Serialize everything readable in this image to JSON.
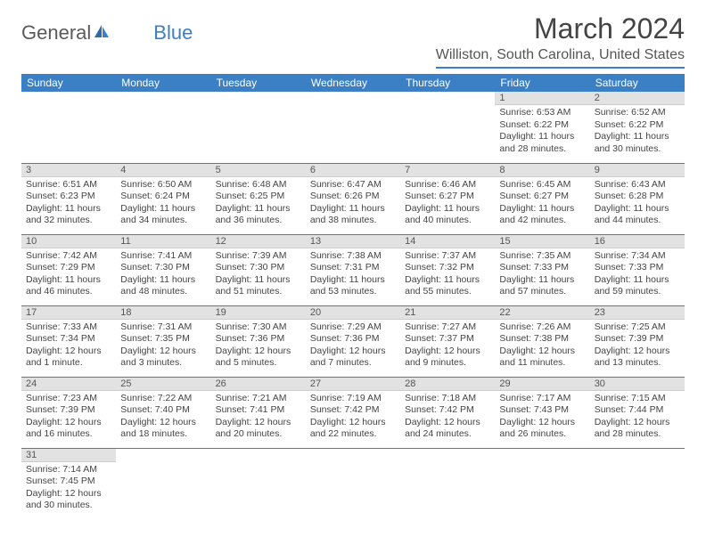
{
  "logo": {
    "text_gray": "General",
    "text_blue": "Blue"
  },
  "title": "March 2024",
  "location": "Williston, South Carolina, United States",
  "colors": {
    "header_bg": "#3b7fc4",
    "header_text": "#ffffff",
    "daynum_bg": "#e2e2e2",
    "border": "#3b7fc4",
    "body_text": "#444444"
  },
  "weekdays": [
    "Sunday",
    "Monday",
    "Tuesday",
    "Wednesday",
    "Thursday",
    "Friday",
    "Saturday"
  ],
  "weeks": [
    [
      null,
      null,
      null,
      null,
      null,
      {
        "n": "1",
        "sr": "6:53 AM",
        "ss": "6:22 PM",
        "dl": "11 hours and 28 minutes."
      },
      {
        "n": "2",
        "sr": "6:52 AM",
        "ss": "6:22 PM",
        "dl": "11 hours and 30 minutes."
      }
    ],
    [
      {
        "n": "3",
        "sr": "6:51 AM",
        "ss": "6:23 PM",
        "dl": "11 hours and 32 minutes."
      },
      {
        "n": "4",
        "sr": "6:50 AM",
        "ss": "6:24 PM",
        "dl": "11 hours and 34 minutes."
      },
      {
        "n": "5",
        "sr": "6:48 AM",
        "ss": "6:25 PM",
        "dl": "11 hours and 36 minutes."
      },
      {
        "n": "6",
        "sr": "6:47 AM",
        "ss": "6:26 PM",
        "dl": "11 hours and 38 minutes."
      },
      {
        "n": "7",
        "sr": "6:46 AM",
        "ss": "6:27 PM",
        "dl": "11 hours and 40 minutes."
      },
      {
        "n": "8",
        "sr": "6:45 AM",
        "ss": "6:27 PM",
        "dl": "11 hours and 42 minutes."
      },
      {
        "n": "9",
        "sr": "6:43 AM",
        "ss": "6:28 PM",
        "dl": "11 hours and 44 minutes."
      }
    ],
    [
      {
        "n": "10",
        "sr": "7:42 AM",
        "ss": "7:29 PM",
        "dl": "11 hours and 46 minutes."
      },
      {
        "n": "11",
        "sr": "7:41 AM",
        "ss": "7:30 PM",
        "dl": "11 hours and 48 minutes."
      },
      {
        "n": "12",
        "sr": "7:39 AM",
        "ss": "7:30 PM",
        "dl": "11 hours and 51 minutes."
      },
      {
        "n": "13",
        "sr": "7:38 AM",
        "ss": "7:31 PM",
        "dl": "11 hours and 53 minutes."
      },
      {
        "n": "14",
        "sr": "7:37 AM",
        "ss": "7:32 PM",
        "dl": "11 hours and 55 minutes."
      },
      {
        "n": "15",
        "sr": "7:35 AM",
        "ss": "7:33 PM",
        "dl": "11 hours and 57 minutes."
      },
      {
        "n": "16",
        "sr": "7:34 AM",
        "ss": "7:33 PM",
        "dl": "11 hours and 59 minutes."
      }
    ],
    [
      {
        "n": "17",
        "sr": "7:33 AM",
        "ss": "7:34 PM",
        "dl": "12 hours and 1 minute."
      },
      {
        "n": "18",
        "sr": "7:31 AM",
        "ss": "7:35 PM",
        "dl": "12 hours and 3 minutes."
      },
      {
        "n": "19",
        "sr": "7:30 AM",
        "ss": "7:36 PM",
        "dl": "12 hours and 5 minutes."
      },
      {
        "n": "20",
        "sr": "7:29 AM",
        "ss": "7:36 PM",
        "dl": "12 hours and 7 minutes."
      },
      {
        "n": "21",
        "sr": "7:27 AM",
        "ss": "7:37 PM",
        "dl": "12 hours and 9 minutes."
      },
      {
        "n": "22",
        "sr": "7:26 AM",
        "ss": "7:38 PM",
        "dl": "12 hours and 11 minutes."
      },
      {
        "n": "23",
        "sr": "7:25 AM",
        "ss": "7:39 PM",
        "dl": "12 hours and 13 minutes."
      }
    ],
    [
      {
        "n": "24",
        "sr": "7:23 AM",
        "ss": "7:39 PM",
        "dl": "12 hours and 16 minutes."
      },
      {
        "n": "25",
        "sr": "7:22 AM",
        "ss": "7:40 PM",
        "dl": "12 hours and 18 minutes."
      },
      {
        "n": "26",
        "sr": "7:21 AM",
        "ss": "7:41 PM",
        "dl": "12 hours and 20 minutes."
      },
      {
        "n": "27",
        "sr": "7:19 AM",
        "ss": "7:42 PM",
        "dl": "12 hours and 22 minutes."
      },
      {
        "n": "28",
        "sr": "7:18 AM",
        "ss": "7:42 PM",
        "dl": "12 hours and 24 minutes."
      },
      {
        "n": "29",
        "sr": "7:17 AM",
        "ss": "7:43 PM",
        "dl": "12 hours and 26 minutes."
      },
      {
        "n": "30",
        "sr": "7:15 AM",
        "ss": "7:44 PM",
        "dl": "12 hours and 28 minutes."
      }
    ],
    [
      {
        "n": "31",
        "sr": "7:14 AM",
        "ss": "7:45 PM",
        "dl": "12 hours and 30 minutes."
      },
      null,
      null,
      null,
      null,
      null,
      null
    ]
  ]
}
